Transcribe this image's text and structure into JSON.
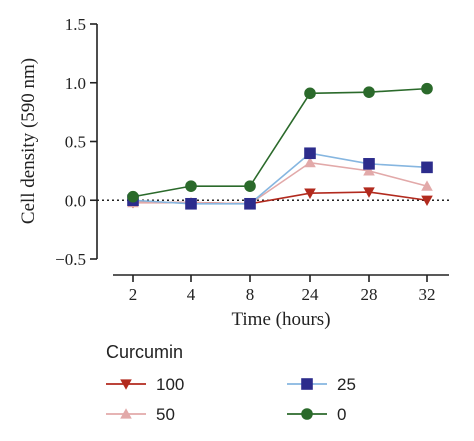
{
  "chart_data": {
    "type": "line",
    "xlabel": "Time (hours)",
    "ylabel": "Cell density (590 nm)",
    "categories": [
      "2",
      "4",
      "8",
      "24",
      "28",
      "32"
    ],
    "ylim": [
      -0.5,
      1.5
    ],
    "yticks": [
      -0.5,
      0.0,
      0.5,
      1.0,
      1.5
    ],
    "ytick_labels": [
      "−0.5",
      "0.0",
      "0.5",
      "1.0",
      "1.5"
    ],
    "reference_line": {
      "y": 0,
      "style": "dotted"
    },
    "legend_title": "Curcumin",
    "series": [
      {
        "name": "100",
        "marker": "triangle-down",
        "color": "#b22a1e",
        "values": [
          -0.02,
          -0.02,
          -0.03,
          0.06,
          0.07,
          0.0
        ]
      },
      {
        "name": "50",
        "marker": "triangle-up",
        "color": "#e2a9a9",
        "values": [
          -0.02,
          -0.02,
          -0.03,
          0.32,
          0.25,
          0.12
        ]
      },
      {
        "name": "25",
        "marker": "square",
        "color": "#2c2c8c",
        "line_color": "#86b6e0",
        "values": [
          0.0,
          -0.03,
          -0.03,
          0.4,
          0.31,
          0.28
        ]
      },
      {
        "name": "0",
        "marker": "circle",
        "color": "#2b6a2b",
        "values": [
          0.03,
          0.12,
          0.12,
          0.91,
          0.92,
          0.95
        ]
      }
    ]
  }
}
